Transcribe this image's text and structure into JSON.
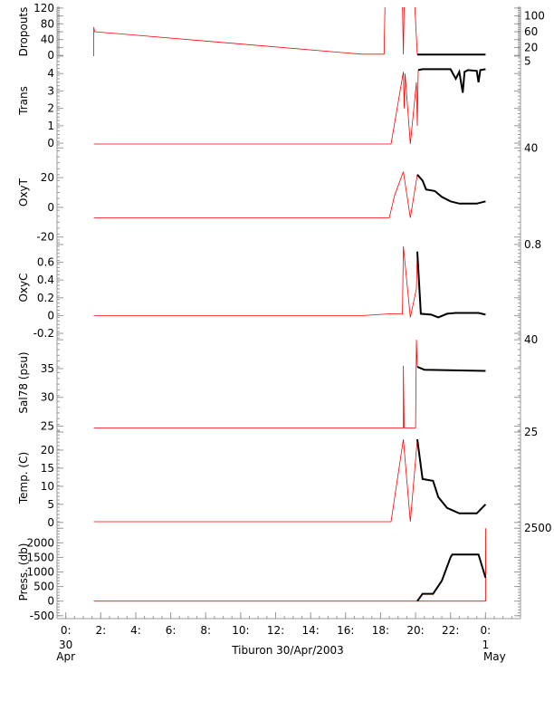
{
  "chart_data": {
    "type": "line",
    "title": "",
    "xlabel": "Tiburon 30/Apr/2003",
    "xlim": [
      -0.5,
      26
    ],
    "x_ticks": [
      {
        "v": 0,
        "l": "0:",
        "sub1": "30",
        "sub2": "Apr"
      },
      {
        "v": 2,
        "l": "2:"
      },
      {
        "v": 4,
        "l": "4:"
      },
      {
        "v": 6,
        "l": "6:"
      },
      {
        "v": 8,
        "l": "8:"
      },
      {
        "v": 10,
        "l": "10:"
      },
      {
        "v": 12,
        "l": "12:"
      },
      {
        "v": 14,
        "l": "14:"
      },
      {
        "v": 16,
        "l": "16:"
      },
      {
        "v": 18,
        "l": "18:"
      },
      {
        "v": 20,
        "l": "20:"
      },
      {
        "v": 22,
        "l": "22:"
      },
      {
        "v": 24,
        "l": "0:",
        "sub1": "1",
        "sub2": "May"
      }
    ],
    "series_colors": {
      "raw": "#ff0000",
      "good": "#000000"
    },
    "panels": [
      {
        "ylabel": "Dropouts",
        "ylim": [
          -2,
          122
        ],
        "yticks": [
          0,
          20,
          40,
          60,
          80,
          100,
          120
        ],
        "raw": [
          [
            1.6,
            -2
          ],
          [
            1.6,
            72
          ],
          [
            1.65,
            60
          ],
          [
            16.9,
            3
          ],
          [
            18.2,
            3
          ],
          [
            18.25,
            130
          ],
          [
            19.25,
            130
          ],
          [
            19.3,
            2
          ],
          [
            19.35,
            130
          ],
          [
            19.95,
            130
          ],
          [
            20.1,
            2
          ]
        ],
        "good": [
          [
            20.1,
            2
          ],
          [
            24,
            2
          ]
        ]
      },
      {
        "ylabel": "Trans",
        "ylim": [
          -0.1,
          5
        ],
        "yticks": [
          0,
          1,
          2,
          3,
          4,
          5
        ],
        "raw": [
          [
            1.6,
            -0.05
          ],
          [
            18.6,
            -0.05
          ],
          [
            19.3,
            4.1
          ],
          [
            19.35,
            2
          ],
          [
            19.4,
            4.0
          ],
          [
            19.7,
            -0.05
          ],
          [
            20.05,
            3.5
          ],
          [
            20.1,
            1.0
          ],
          [
            20.15,
            4.2
          ]
        ],
        "good": [
          [
            20.15,
            4.2
          ],
          [
            20.4,
            4.25
          ],
          [
            22,
            4.25
          ],
          [
            22.3,
            3.7
          ],
          [
            22.5,
            4.1
          ],
          [
            22.7,
            2.9
          ],
          [
            22.8,
            4.1
          ],
          [
            23,
            4.2
          ],
          [
            23.5,
            4.15
          ],
          [
            23.6,
            3.5
          ],
          [
            23.7,
            4.2
          ],
          [
            24,
            4.25
          ]
        ]
      },
      {
        "ylabel": "OxyT",
        "ylim": [
          -22,
          42
        ],
        "yticks": [
          -20,
          0,
          20,
          40
        ],
        "raw": [
          [
            1.6,
            -7
          ],
          [
            18.5,
            -7
          ],
          [
            18.8,
            8
          ],
          [
            19.3,
            24
          ],
          [
            19.7,
            -7
          ],
          [
            20.1,
            22
          ]
        ],
        "good": [
          [
            20.1,
            22
          ],
          [
            20.4,
            18
          ],
          [
            20.6,
            12
          ],
          [
            21.1,
            11
          ],
          [
            21.5,
            7
          ],
          [
            22,
            4
          ],
          [
            22.5,
            2.5
          ],
          [
            23.5,
            2.5
          ],
          [
            24,
            4
          ]
        ]
      },
      {
        "ylabel": "OxyC",
        "ylim": [
          -0.22,
          0.85
        ],
        "yticks": [
          -0.2,
          0.0,
          0.2,
          0.4,
          0.6,
          0.8
        ],
        "raw": [
          [
            1.6,
            0
          ],
          [
            17,
            0
          ],
          [
            18.6,
            0.02
          ],
          [
            19.25,
            0.02
          ],
          [
            19.3,
            0.78
          ],
          [
            19.7,
            -0.02
          ],
          [
            20.05,
            0.3
          ],
          [
            20.1,
            0.72
          ]
        ],
        "good": [
          [
            20.1,
            0.72
          ],
          [
            20.3,
            0.02
          ],
          [
            20.9,
            0.01
          ],
          [
            21.3,
            -0.02
          ],
          [
            21.8,
            0.02
          ],
          [
            22.3,
            0.03
          ],
          [
            23.6,
            0.03
          ],
          [
            24,
            0.01
          ]
        ]
      },
      {
        "ylabel": "Sal78 (psu)",
        "ylim": [
          24.3,
          40.8
        ],
        "yticks": [
          25,
          30,
          35,
          40
        ],
        "raw": [
          [
            1.6,
            24.7
          ],
          [
            19.3,
            24.7
          ],
          [
            19.3,
            35.5
          ],
          [
            19.35,
            24.7
          ],
          [
            20.0,
            24.7
          ],
          [
            20.05,
            40
          ],
          [
            20.1,
            35.3
          ]
        ],
        "good": [
          [
            20.1,
            35.3
          ],
          [
            20.5,
            34.8
          ],
          [
            24,
            34.6
          ]
        ]
      },
      {
        "ylabel": "Temp. (C)",
        "ylim": [
          -0.8,
          25.5
        ],
        "yticks": [
          0,
          5,
          10,
          15,
          20,
          25
        ],
        "raw": [
          [
            1.6,
            0.2
          ],
          [
            18.6,
            0.2
          ],
          [
            19.3,
            23
          ],
          [
            19.7,
            0.2
          ],
          [
            20.1,
            23
          ]
        ],
        "good": [
          [
            20.1,
            23
          ],
          [
            20.4,
            12
          ],
          [
            21,
            11.5
          ],
          [
            21.3,
            7
          ],
          [
            21.8,
            4
          ],
          [
            22.5,
            2.5
          ],
          [
            23.5,
            2.5
          ],
          [
            24,
            5
          ]
        ]
      },
      {
        "ylabel": "Press. (db)",
        "ylim": [
          -600,
          2600
        ],
        "yticks": [
          -500,
          0,
          500,
          1000,
          1500,
          2000,
          2500
        ],
        "raw": [
          [
            1.6,
            0
          ],
          [
            19.5,
            0
          ],
          [
            20.05,
            0
          ],
          [
            24,
            0
          ],
          [
            24,
            2500
          ],
          [
            24.01,
            800
          ]
        ],
        "good": [
          [
            20.1,
            0
          ],
          [
            20.4,
            250
          ],
          [
            21,
            250
          ],
          [
            21.5,
            700
          ],
          [
            22,
            1500
          ],
          [
            22.1,
            1600
          ],
          [
            23.6,
            1600
          ],
          [
            24,
            800
          ]
        ]
      }
    ]
  }
}
